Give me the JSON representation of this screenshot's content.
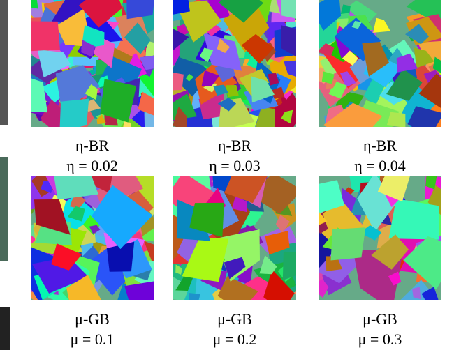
{
  "panels": [
    {
      "method": "η-BR",
      "param": "η = 0.02"
    },
    {
      "method": "η-BR",
      "param": "η = 0.03"
    },
    {
      "method": "η-BR",
      "param": "η = 0.04"
    },
    {
      "method": "μ-GB",
      "param": "μ = 0.1"
    },
    {
      "method": "μ-GB",
      "param": "μ = 0.2"
    },
    {
      "method": "μ-GB",
      "param": "μ = 0.3"
    }
  ]
}
